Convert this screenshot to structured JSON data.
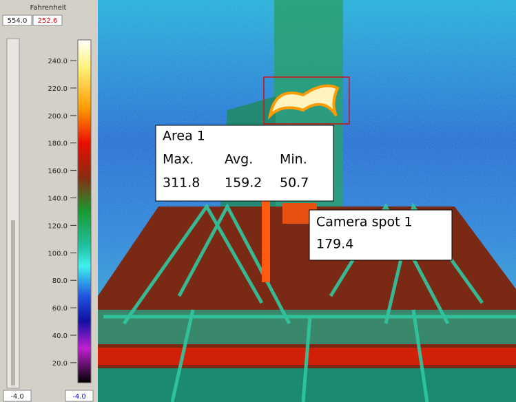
{
  "scale": {
    "unit": "Fahrenheit",
    "max_value": "554.0",
    "current_max": "252.6",
    "labels": [
      "240.0",
      "220.0",
      "200.0",
      "180.0",
      "160.0",
      "140.0",
      "120.0",
      "100.0",
      "80.0",
      "60.0",
      "40.0",
      "20.0"
    ],
    "min_value": "-4.0",
    "current_min": "-4.0"
  },
  "annotations": {
    "area": {
      "label": "Area 1",
      "headers": [
        "Max.",
        "Avg.",
        "Min."
      ],
      "values": [
        "311.8",
        "159.2",
        "50.7"
      ]
    },
    "spot": {
      "label": "Camera spot 1",
      "value": "179.4"
    }
  }
}
